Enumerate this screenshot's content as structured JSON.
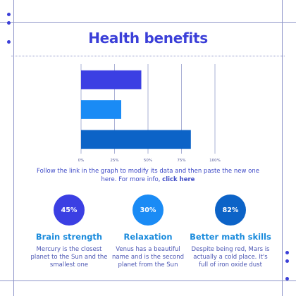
{
  "title": "Health benefits",
  "caption": {
    "text": "Follow the link in the graph to modify its data and then paste the new one here. For more info, ",
    "link": "click here"
  },
  "colors": {
    "title": "#3b3fd8",
    "frame": "#8f96c9",
    "bar_1": "#3b3fe3",
    "bar_2": "#1a8bf5",
    "bar_3": "#0c63c7",
    "stat_title": "#1a8bdc"
  },
  "chart_data": {
    "type": "bar",
    "orientation": "horizontal",
    "categories": [
      "Brain strength",
      "Relaxation",
      "Better math skills"
    ],
    "values": [
      45,
      30,
      82
    ],
    "xlim": [
      0,
      100
    ],
    "xticks": [
      "0%",
      "25%",
      "50%",
      "75%",
      "100%"
    ],
    "grid": true,
    "title": "",
    "xlabel": "",
    "ylabel": ""
  },
  "stats": [
    {
      "value": "45%",
      "title": "Brain strength",
      "description": "Mercury is the closest planet to the Sun and the smallest one",
      "color": "#3b3fe3"
    },
    {
      "value": "30%",
      "title": "Relaxation",
      "description": "Venus has a beautiful name and is the second planet from the Sun",
      "color": "#1a8bf5"
    },
    {
      "value": "82%",
      "title": "Better math skills",
      "description": "Despite being red, Mars is actually a cold place. It's full of iron oxide dust",
      "color": "#0c63c7"
    }
  ]
}
